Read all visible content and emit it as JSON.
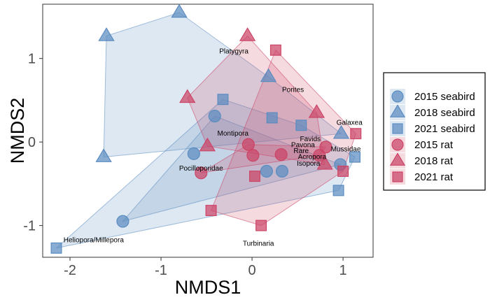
{
  "chart_data": {
    "type": "scatter",
    "xlabel": "NMDS1",
    "ylabel": "NMDS2",
    "xlim": [
      -2.3,
      1.33
    ],
    "ylim": [
      -1.38,
      1.65
    ],
    "x_ticks": [
      -2,
      -1,
      0,
      1
    ],
    "y_ticks": [
      -1,
      0,
      1
    ],
    "x_tick_labels": [
      "-2",
      "-1",
      "0",
      "1"
    ],
    "y_tick_labels": [
      "-1",
      "0",
      "1"
    ],
    "grid": false,
    "legend_position": "right",
    "colors": {
      "seabird": "#5b8cc0",
      "rat": "#cc4466"
    },
    "series": [
      {
        "name": "2015 seabird",
        "group": "seabird",
        "marker": "circle",
        "points": [
          [
            -0.41,
            0.31
          ],
          [
            -0.64,
            -0.14
          ],
          [
            -1.42,
            -0.95
          ],
          [
            0.16,
            -0.35
          ],
          [
            0.33,
            -0.35
          ],
          [
            0.97,
            -0.27
          ]
        ]
      },
      {
        "name": "2018 seabird",
        "group": "seabird",
        "marker": "triangle",
        "points": [
          [
            -0.8,
            1.55
          ],
          [
            -1.6,
            1.27
          ],
          [
            -1.63,
            -0.18
          ],
          [
            0.18,
            0.78
          ],
          [
            0.98,
            0.1
          ]
        ]
      },
      {
        "name": "2021 seabird",
        "group": "seabird",
        "marker": "square",
        "points": [
          [
            -0.32,
            0.51
          ],
          [
            0.22,
            0.29
          ],
          [
            0.54,
            0.2
          ],
          [
            1.13,
            -0.18
          ],
          [
            0.95,
            -0.58
          ],
          [
            -2.15,
            -1.27
          ]
        ]
      },
      {
        "name": "2015 rat",
        "group": "rat",
        "marker": "circle",
        "points": [
          [
            -0.56,
            -0.37
          ],
          [
            -0.04,
            -0.03
          ],
          [
            0.01,
            -0.16
          ],
          [
            0.32,
            -0.15
          ],
          [
            0.74,
            -0.16
          ],
          [
            0.81,
            -0.06
          ]
        ]
      },
      {
        "name": "2018 rat",
        "group": "rat",
        "marker": "triangle",
        "points": [
          [
            -0.05,
            1.27
          ],
          [
            -0.71,
            0.53
          ],
          [
            -0.49,
            -0.05
          ],
          [
            0.71,
            0.35
          ],
          [
            0.8,
            -0.27
          ]
        ]
      },
      {
        "name": "2021 rat",
        "group": "rat",
        "marker": "square",
        "points": [
          [
            0.26,
            1.1
          ],
          [
            1.14,
            0.1
          ],
          [
            1.0,
            -0.35
          ],
          [
            0.03,
            -0.41
          ],
          [
            -0.45,
            -0.82
          ],
          [
            0.1,
            -1.0
          ]
        ]
      }
    ],
    "annotations": [
      {
        "text": "Platygyra",
        "x": -0.2,
        "y": 1.08
      },
      {
        "text": "Porites",
        "x": 0.45,
        "y": 0.62
      },
      {
        "text": "Galaxea",
        "x": 1.07,
        "y": 0.23
      },
      {
        "text": "Montipora",
        "x": -0.21,
        "y": 0.1
      },
      {
        "text": "Favids",
        "x": 0.64,
        "y": 0.03
      },
      {
        "text": "Pavona",
        "x": 0.56,
        "y": -0.04
      },
      {
        "text": "Rare",
        "x": 0.54,
        "y": -0.11
      },
      {
        "text": "Mussidae",
        "x": 1.03,
        "y": -0.09
      },
      {
        "text": "Acropora",
        "x": 0.66,
        "y": -0.18
      },
      {
        "text": "Isopora",
        "x": 0.62,
        "y": -0.26
      },
      {
        "text": "Pocilloporidae",
        "x": -0.56,
        "y": -0.32
      },
      {
        "text": "Heliopora/Millepora",
        "x": -1.74,
        "y": -1.18
      },
      {
        "text": "Turbinaria",
        "x": 0.07,
        "y": -1.22
      }
    ]
  }
}
